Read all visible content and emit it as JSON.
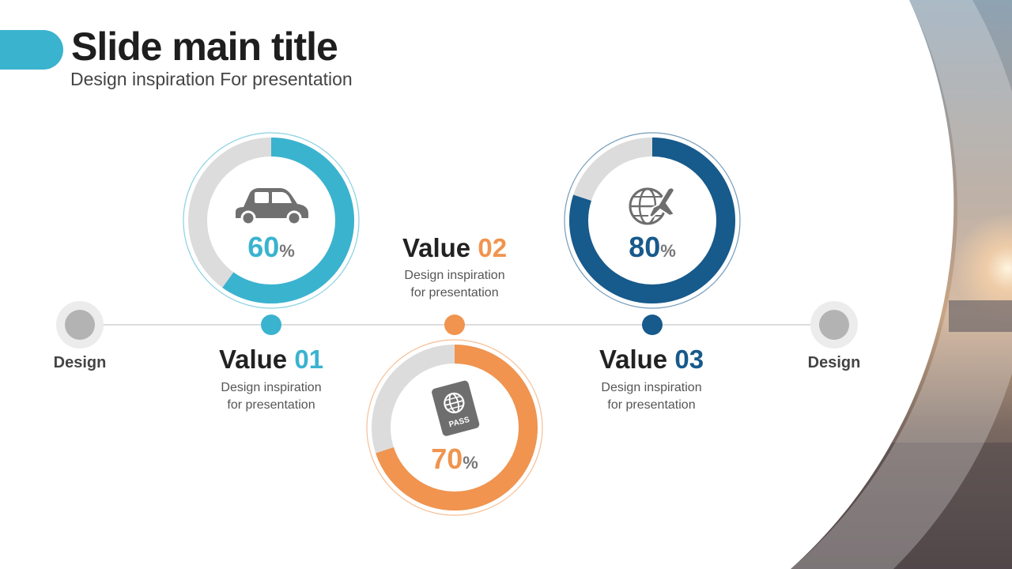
{
  "header": {
    "title": "Slide main title",
    "subtitle": "Design inspiration For presentation"
  },
  "colors": {
    "blue": "#3ab3cf",
    "orange": "#f0944f",
    "navy": "#175a8c",
    "track": "#dcdcdc"
  },
  "timeline": {
    "left_label": "Design",
    "right_label": "Design"
  },
  "items": [
    {
      "label": "Value",
      "number": "01",
      "desc_line1": "Design inspiration",
      "desc_line2": "for presentation",
      "percent_value": 60,
      "percent_text": "60",
      "percent_symbol": "%",
      "icon": "car-icon"
    },
    {
      "label": "Value",
      "number": "02",
      "desc_line1": "Design inspiration",
      "desc_line2": "for presentation",
      "percent_value": 70,
      "percent_text": "70",
      "percent_symbol": "%",
      "icon": "passport-icon"
    },
    {
      "label": "Value",
      "number": "03",
      "desc_line1": "Design inspiration",
      "desc_line2": "for presentation",
      "percent_value": 80,
      "percent_text": "80",
      "percent_symbol": "%",
      "icon": "globe-plane-icon"
    }
  ]
}
